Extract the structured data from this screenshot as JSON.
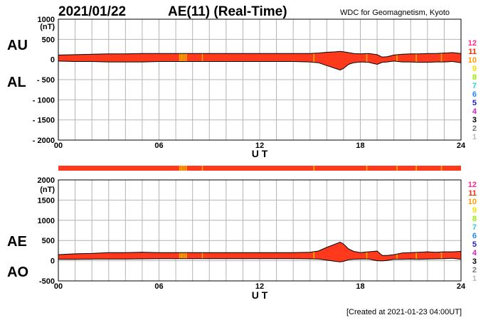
{
  "header": {
    "date": "2021/01/22",
    "title": "AE(11) (Real-Time)",
    "source": "WDC for Geomagnetism, Kyoto"
  },
  "footer": {
    "created": "[Created at 2021-01-23 04:00UT]"
  },
  "colors": {
    "band": "#ff3a1c",
    "stripe": "#ffb000",
    "outline": "#000000",
    "grid": "#b4b4b4"
  },
  "legend": [
    {
      "label": "12",
      "color": "#ff2a8a"
    },
    {
      "label": "11",
      "color": "#ff2a00"
    },
    {
      "label": "10",
      "color": "#ff9900"
    },
    {
      "label": "9",
      "color": "#ffdd00"
    },
    {
      "label": "8",
      "color": "#99ee00"
    },
    {
      "label": "7",
      "color": "#33cccc"
    },
    {
      "label": "6",
      "color": "#2288ff"
    },
    {
      "label": "5",
      "color": "#2222cc"
    },
    {
      "label": "4",
      "color": "#cc22cc"
    },
    {
      "label": "3",
      "color": "#000000"
    },
    {
      "label": "2",
      "color": "#777777"
    },
    {
      "label": "1",
      "color": "#bbbbbb"
    }
  ],
  "stripe_hours": [
    7.2,
    7.3,
    7.4,
    7.5,
    7.6,
    8.55,
    15.2,
    18.35,
    20.15,
    21.3,
    22.8
  ],
  "chart_data": [
    {
      "type": "area",
      "xlabel": "U T",
      "unit_label": "(nT)",
      "xlim": [
        0,
        24
      ],
      "ylim": [
        -2000,
        1000
      ],
      "x_ticks": [
        "00",
        "06",
        "12",
        "18",
        "24"
      ],
      "y_ticks": [
        "1000",
        "500",
        "0",
        "- 500",
        "- 1000",
        "- 1500",
        "- 2000"
      ],
      "side_labels": [
        "AU",
        "AL"
      ],
      "x": [
        0,
        1,
        2,
        3,
        4,
        5,
        6,
        7,
        8,
        9,
        10,
        11,
        12,
        13,
        14,
        15,
        15.5,
        16,
        16.5,
        16.8,
        17,
        17.3,
        17.6,
        18,
        18.5,
        19,
        19.3,
        19.6,
        20,
        20.5,
        21,
        21.5,
        22,
        22.5,
        23,
        23.5,
        24
      ],
      "series": [
        {
          "name": "AU",
          "values": [
            110,
            120,
            130,
            140,
            140,
            150,
            150,
            150,
            150,
            150,
            150,
            150,
            150,
            150,
            150,
            150,
            160,
            180,
            190,
            200,
            190,
            170,
            150,
            140,
            150,
            120,
            60,
            70,
            110,
            130,
            140,
            140,
            150,
            150,
            160,
            170,
            150
          ]
        },
        {
          "name": "AL",
          "values": [
            -40,
            -50,
            -50,
            -60,
            -60,
            -60,
            -50,
            -50,
            -50,
            -50,
            -50,
            -50,
            -50,
            -50,
            -50,
            -60,
            -80,
            -150,
            -220,
            -260,
            -220,
            -120,
            -80,
            -60,
            -70,
            -120,
            -70,
            -60,
            -40,
            -60,
            -60,
            -70,
            -70,
            -60,
            -60,
            -50,
            -80
          ]
        }
      ]
    },
    {
      "type": "area",
      "xlabel": "U T",
      "unit_label": "(nT)",
      "xlim": [
        0,
        24
      ],
      "ylim": [
        -500,
        2000
      ],
      "x_ticks": [
        "00",
        "06",
        "12",
        "18",
        "24"
      ],
      "y_ticks": [
        "2000",
        "1500",
        "1000",
        "500",
        "0",
        "-500"
      ],
      "side_labels": [
        "AE",
        "AO"
      ],
      "x": [
        0,
        1,
        2,
        3,
        4,
        5,
        6,
        7,
        8,
        9,
        10,
        11,
        12,
        13,
        14,
        15,
        15.5,
        16,
        16.5,
        16.8,
        17,
        17.3,
        17.6,
        18,
        18.5,
        19,
        19.3,
        19.6,
        20,
        20.5,
        21,
        21.5,
        22,
        22.5,
        23,
        23.5,
        24
      ],
      "series": [
        {
          "name": "AE",
          "values": [
            150,
            170,
            180,
            200,
            200,
            210,
            200,
            200,
            200,
            200,
            200,
            200,
            200,
            200,
            200,
            210,
            240,
            330,
            410,
            460,
            410,
            290,
            230,
            200,
            220,
            240,
            130,
            130,
            150,
            190,
            200,
            210,
            220,
            210,
            220,
            220,
            230
          ]
        },
        {
          "name": "AO",
          "values": [
            35,
            35,
            40,
            40,
            40,
            45,
            50,
            50,
            50,
            50,
            50,
            50,
            50,
            50,
            50,
            45,
            40,
            15,
            -15,
            -30,
            -15,
            25,
            35,
            40,
            40,
            0,
            -5,
            5,
            35,
            35,
            40,
            35,
            40,
            45,
            50,
            60,
            35
          ]
        }
      ]
    }
  ]
}
